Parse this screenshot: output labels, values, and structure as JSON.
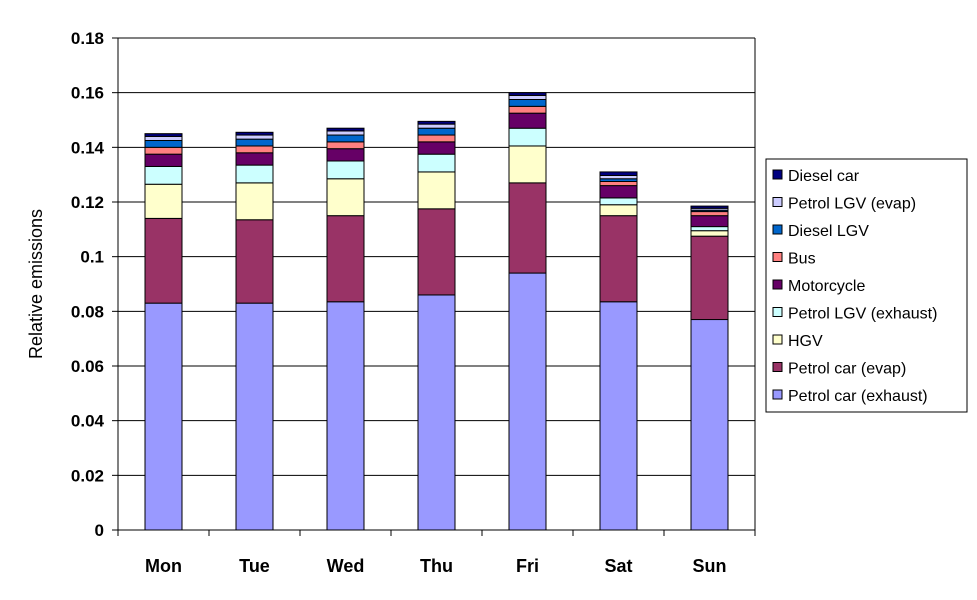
{
  "chart_data": {
    "type": "bar",
    "stacked": true,
    "title": "",
    "xlabel": "",
    "ylabel": "Relative emissions",
    "ylim": [
      0,
      0.18
    ],
    "yticks": [
      "0",
      "0.02",
      "0.04",
      "0.06",
      "0.08",
      "0.1",
      "0.12",
      "0.14",
      "0.16",
      "0.18"
    ],
    "grid": true,
    "legend_position": "right",
    "categories": [
      "Mon",
      "Tue",
      "Wed",
      "Thu",
      "Fri",
      "Sat",
      "Sun"
    ],
    "series": [
      {
        "name": "Petrol car (exhaust)",
        "color": "#9999ff",
        "values": [
          0.083,
          0.083,
          0.0835,
          0.086,
          0.094,
          0.0835,
          0.077
        ]
      },
      {
        "name": "Petrol car (evap)",
        "color": "#993366",
        "values": [
          0.031,
          0.0305,
          0.0315,
          0.0315,
          0.033,
          0.0315,
          0.0305
        ]
      },
      {
        "name": "HGV",
        "color": "#ffffcc",
        "values": [
          0.0125,
          0.0135,
          0.0135,
          0.0135,
          0.0135,
          0.004,
          0.002
        ]
      },
      {
        "name": "Petrol LGV (exhaust)",
        "color": "#ccffff",
        "values": [
          0.0065,
          0.0065,
          0.0065,
          0.0065,
          0.0065,
          0.0025,
          0.0015
        ]
      },
      {
        "name": "Motorcycle",
        "color": "#660066",
        "values": [
          0.0045,
          0.0045,
          0.0045,
          0.0045,
          0.0055,
          0.0045,
          0.004
        ]
      },
      {
        "name": "Bus",
        "color": "#ff8080",
        "values": [
          0.0025,
          0.0025,
          0.0025,
          0.0025,
          0.0025,
          0.0015,
          0.0015
        ]
      },
      {
        "name": "Diesel LGV",
        "color": "#0066cc",
        "values": [
          0.0025,
          0.0025,
          0.0025,
          0.0025,
          0.0025,
          0.001,
          0.0005
        ]
      },
      {
        "name": "Petrol LGV (evap)",
        "color": "#ccccff",
        "values": [
          0.0015,
          0.0015,
          0.0015,
          0.0015,
          0.0015,
          0.0012,
          0.0007
        ]
      },
      {
        "name": "Diesel car",
        "color": "#000080",
        "values": [
          0.001,
          0.001,
          0.001,
          0.001,
          0.001,
          0.0013,
          0.0008
        ]
      }
    ]
  }
}
